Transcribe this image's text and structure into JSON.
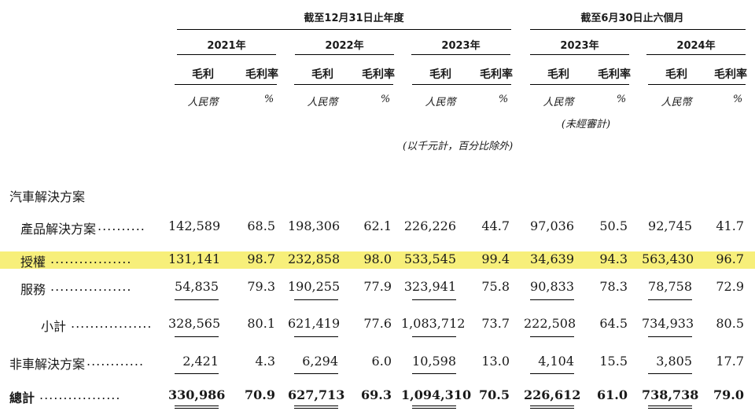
{
  "headers": {
    "fy_group": "截至12月31日止年度",
    "hy_group": "截至6月30日止六個月",
    "years": [
      "2021年",
      "2022年",
      "2023年",
      "2023年",
      "2024年"
    ],
    "gross_profit": "毛利",
    "gross_margin": "毛利率",
    "currency": "人民幣",
    "percent": "%",
    "unaudited": "(未經審計)",
    "units_note": "(以千元計，百分比除外)"
  },
  "section_auto": "汽車解決方案",
  "rows": [
    {
      "label": "產品解決方案",
      "dots": "..........",
      "values": [
        "142,589",
        "68.5",
        "198,306",
        "62.1",
        "226,226",
        "44.7",
        "97,036",
        "50.5",
        "92,745",
        "41.7"
      ]
    },
    {
      "label": "授權",
      "dots": ".................",
      "values": [
        "131,141",
        "98.7",
        "232,858",
        "98.0",
        "533,545",
        "99.4",
        "34,639",
        "94.3",
        "563,430",
        "96.7"
      ]
    },
    {
      "label": "服務",
      "dots": ".................",
      "values": [
        "54,835",
        "79.3",
        "190,255",
        "77.9",
        "323,941",
        "75.8",
        "90,833",
        "78.3",
        "78,758",
        "72.9"
      ]
    },
    {
      "label": "小計",
      "dots": ".................",
      "values": [
        "328,565",
        "80.1",
        "621,419",
        "77.6",
        "1,083,712",
        "73.7",
        "222,508",
        "64.5",
        "734,933",
        "80.5"
      ]
    },
    {
      "label": "非車解決方案",
      "dots": "............",
      "values": [
        "2,421",
        "4.3",
        "6,294",
        "6.0",
        "10,598",
        "13.0",
        "4,104",
        "15.5",
        "3,805",
        "17.7"
      ]
    },
    {
      "label": "總計",
      "dots": ".................",
      "values": [
        "330,986",
        "70.9",
        "627,713",
        "69.3",
        "1,094,310",
        "70.5",
        "226,612",
        "61.0",
        "738,738",
        "79.0"
      ]
    }
  ]
}
